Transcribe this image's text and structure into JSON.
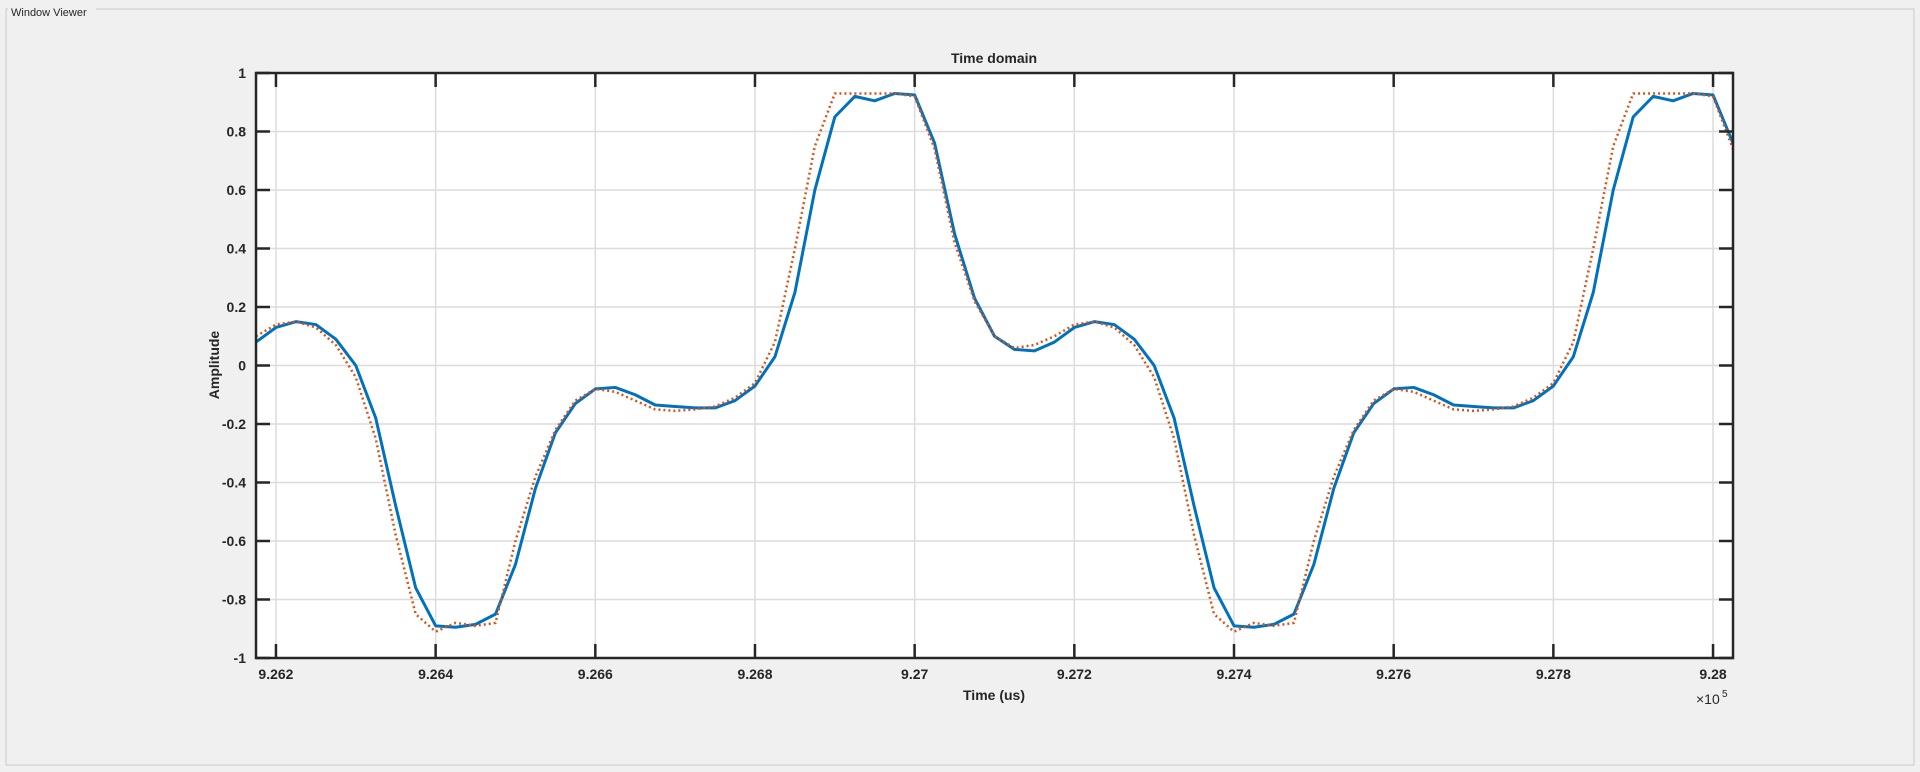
{
  "window_title": "Window Viewer",
  "chart_data": {
    "type": "line",
    "title": "Time domain",
    "x_label": "Time (us)",
    "y_label": "Amplitude",
    "x_exponent_base": "×10",
    "x_exponent": "5",
    "x": [
      926175,
      926200,
      926225,
      926250,
      926275,
      926300,
      926325,
      926350,
      926375,
      926400,
      926425,
      926450,
      926475,
      926500,
      926525,
      926550,
      926575,
      926600,
      926625,
      926650,
      926675,
      926700,
      926725,
      926750,
      926775,
      926800,
      926825,
      926850,
      926875,
      926900,
      926925,
      926950,
      926975,
      927000,
      927025,
      927050,
      927075,
      927100,
      927125,
      927150,
      927175,
      927200,
      927225,
      927250,
      927275,
      927300,
      927325,
      927350,
      927375,
      927400,
      927425,
      927450,
      927475,
      927500,
      927525,
      927550,
      927575,
      927600,
      927625,
      927650,
      927675,
      927700,
      927725,
      927750,
      927775,
      927800,
      927825,
      927850,
      927875,
      927900,
      927925,
      927950,
      927975,
      928000,
      928025
    ],
    "series": [
      {
        "color": "#0072bd",
        "style": "solid",
        "values": [
          0.08,
          0.13,
          0.15,
          0.14,
          0.09,
          0.0,
          -0.18,
          -0.48,
          -0.76,
          -0.89,
          -0.895,
          -0.885,
          -0.85,
          -0.68,
          -0.42,
          -0.23,
          -0.13,
          -0.08,
          -0.075,
          -0.1,
          -0.135,
          -0.14,
          -0.145,
          -0.145,
          -0.12,
          -0.07,
          0.03,
          0.25,
          0.6,
          0.85,
          0.92,
          0.905,
          0.93,
          0.925,
          0.76,
          0.45,
          0.23,
          0.1,
          0.055,
          0.05,
          0.08,
          0.13,
          0.15,
          0.14,
          0.09,
          0.0,
          -0.18,
          -0.48,
          -0.76,
          -0.89,
          -0.895,
          -0.885,
          -0.85,
          -0.68,
          -0.42,
          -0.23,
          -0.13,
          -0.08,
          -0.075,
          -0.1,
          -0.135,
          -0.14,
          -0.145,
          -0.145,
          -0.12,
          -0.07,
          0.03,
          0.25,
          0.6,
          0.85,
          0.92,
          0.905,
          0.93,
          0.925,
          0.76
        ]
      },
      {
        "color": "#d95319",
        "style": "dotted",
        "values": [
          0.1,
          0.14,
          0.15,
          0.13,
          0.07,
          -0.04,
          -0.25,
          -0.58,
          -0.85,
          -0.91,
          -0.88,
          -0.89,
          -0.88,
          -0.6,
          -0.38,
          -0.22,
          -0.12,
          -0.08,
          -0.09,
          -0.12,
          -0.15,
          -0.155,
          -0.15,
          -0.14,
          -0.11,
          -0.06,
          0.08,
          0.4,
          0.75,
          0.93,
          0.93,
          0.93,
          0.93,
          0.92,
          0.74,
          0.42,
          0.22,
          0.1,
          0.06,
          0.07,
          0.1,
          0.14,
          0.15,
          0.13,
          0.07,
          -0.04,
          -0.25,
          -0.58,
          -0.85,
          -0.91,
          -0.88,
          -0.89,
          -0.88,
          -0.6,
          -0.38,
          -0.22,
          -0.12,
          -0.08,
          -0.09,
          -0.12,
          -0.15,
          -0.155,
          -0.15,
          -0.14,
          -0.11,
          -0.06,
          0.08,
          0.4,
          0.75,
          0.93,
          0.93,
          0.93,
          0.93,
          0.92,
          0.74
        ]
      }
    ],
    "xlim": [
      926175,
      928025
    ],
    "xticks": [
      {
        "value": 926200,
        "label": "9.262"
      },
      {
        "value": 926400,
        "label": "9.264"
      },
      {
        "value": 926600,
        "label": "9.266"
      },
      {
        "value": 926800,
        "label": "9.268"
      },
      {
        "value": 927000,
        "label": "9.27"
      },
      {
        "value": 927200,
        "label": "9.272"
      },
      {
        "value": 927400,
        "label": "9.274"
      },
      {
        "value": 927600,
        "label": "9.276"
      },
      {
        "value": 927800,
        "label": "9.278"
      },
      {
        "value": 928000,
        "label": "9.28"
      }
    ],
    "ylim": [
      -1,
      1
    ],
    "yticks": [
      -1,
      -0.8,
      -0.6,
      -0.4,
      -0.2,
      0,
      0.2,
      0.4,
      0.6,
      0.8,
      1
    ],
    "grid": true
  }
}
